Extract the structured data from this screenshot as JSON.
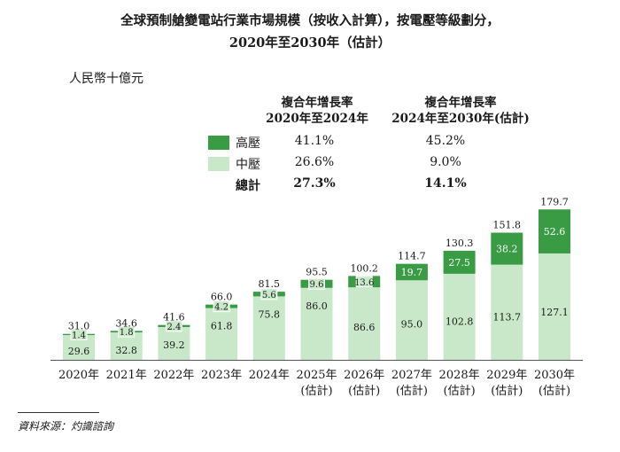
{
  "title": {
    "line1": "全球預制艙變電站行業市場規模（按收入計算），按電壓等級劃分，",
    "line2": "2020年至2030年（估計）"
  },
  "unit": "人民幣十億元",
  "cagr_table": {
    "col1": {
      "line1": "複合年增長率",
      "line2": "2020年至2024年"
    },
    "col2": {
      "line1": "複合年增長率",
      "line2": "2024年至2030年(估計)"
    },
    "rows": [
      {
        "name": "高壓",
        "v1": "41.1%",
        "v2": "45.2%",
        "color": "#3a9b45"
      },
      {
        "name": "中壓",
        "v1": "26.6%",
        "v2": "9.0%",
        "color": "#c9e8c9"
      },
      {
        "name": "總計",
        "v1": "27.3%",
        "v2": "14.1%"
      }
    ]
  },
  "source": "資料來源：灼識諮詢",
  "chart_data": {
    "type": "bar",
    "stacked": true,
    "categories": [
      "2020年",
      "2021年",
      "2022年",
      "2023年",
      "2024年",
      "2025年",
      "2026年",
      "2027年",
      "2028年",
      "2029年",
      "2030年"
    ],
    "estimate_suffix": "(估計)",
    "estimate_from_index": 5,
    "series": [
      {
        "name": "中壓",
        "color": "#c9e8c9",
        "values": [
          29.6,
          32.8,
          39.2,
          61.8,
          75.8,
          86.0,
          86.6,
          95.0,
          102.8,
          113.7,
          127.1
        ]
      },
      {
        "name": "高壓",
        "color": "#3a9b45",
        "values": [
          1.4,
          1.8,
          2.4,
          4.2,
          5.6,
          9.6,
          13.6,
          19.7,
          27.5,
          38.2,
          52.6
        ]
      }
    ],
    "totals": [
      31.0,
      34.6,
      41.6,
      66.0,
      81.5,
      95.5,
      100.2,
      114.7,
      130.3,
      151.8,
      179.7
    ],
    "ylim": [
      0,
      180
    ]
  }
}
